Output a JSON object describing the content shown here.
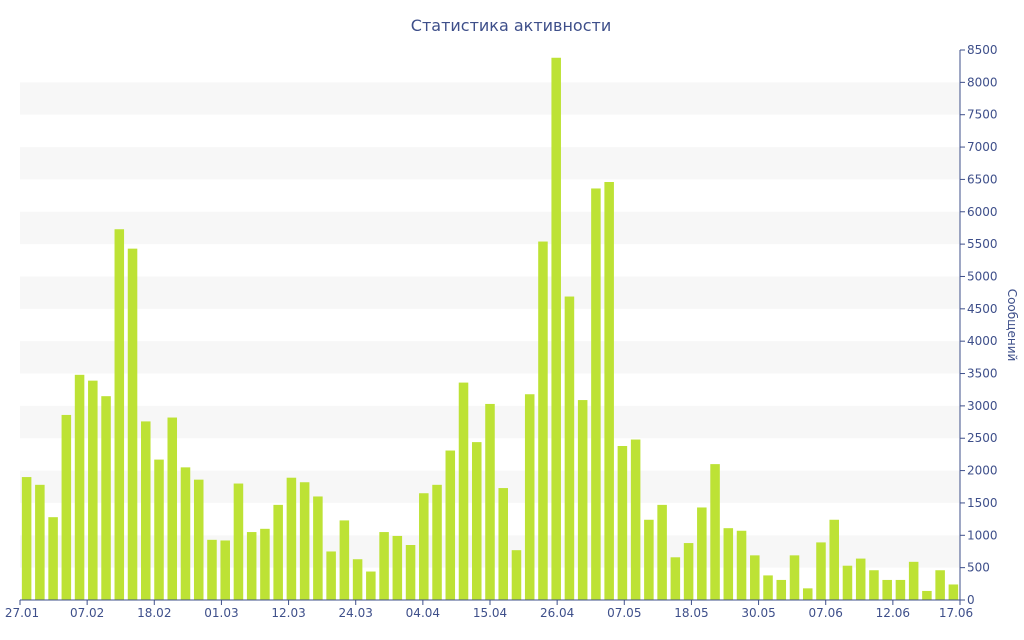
{
  "chart_data": {
    "type": "bar",
    "title": "Статистика активности",
    "ylabel": "Сообщений",
    "xlabel": "",
    "ylim": [
      0,
      8500
    ],
    "yticks": [
      0,
      500,
      1000,
      1500,
      2000,
      2500,
      3000,
      3500,
      4000,
      4500,
      5000,
      5500,
      6000,
      6500,
      7000,
      7500,
      8000,
      8500
    ],
    "y_axis_side": "right",
    "grid": "alternating horizontal bands",
    "bar_color": "#bde235",
    "band_color": "#f7f7f7",
    "text_color": "#3e4f8a",
    "x_tick_labels": [
      "27.01",
      "07.02",
      "18.02",
      "01.03",
      "12.03",
      "24.03",
      "04.04",
      "15.04",
      "26.04",
      "07.05",
      "18.05",
      "30.05",
      "07.06",
      "12.06",
      "17.06"
    ],
    "series": [
      {
        "values": [
          1900,
          1780,
          1280,
          2860,
          3480,
          3390,
          3150,
          5730,
          5430,
          2760,
          2170,
          2820,
          2050,
          1860,
          930,
          920,
          1800,
          1050,
          1100,
          1470,
          1890,
          1820,
          1600,
          750,
          1230,
          630,
          440,
          1050,
          990,
          850,
          1650,
          1780,
          2310,
          3360,
          2440,
          3030,
          1730,
          770,
          3180,
          5540,
          8380,
          4690,
          3090,
          6360,
          6460,
          2380,
          2480,
          1240,
          1470,
          660,
          880,
          1430,
          2100,
          1110,
          1070,
          690,
          380,
          310,
          690,
          180,
          890,
          1240,
          530,
          640,
          460,
          310,
          310,
          590,
          140,
          460,
          240
        ]
      }
    ]
  }
}
